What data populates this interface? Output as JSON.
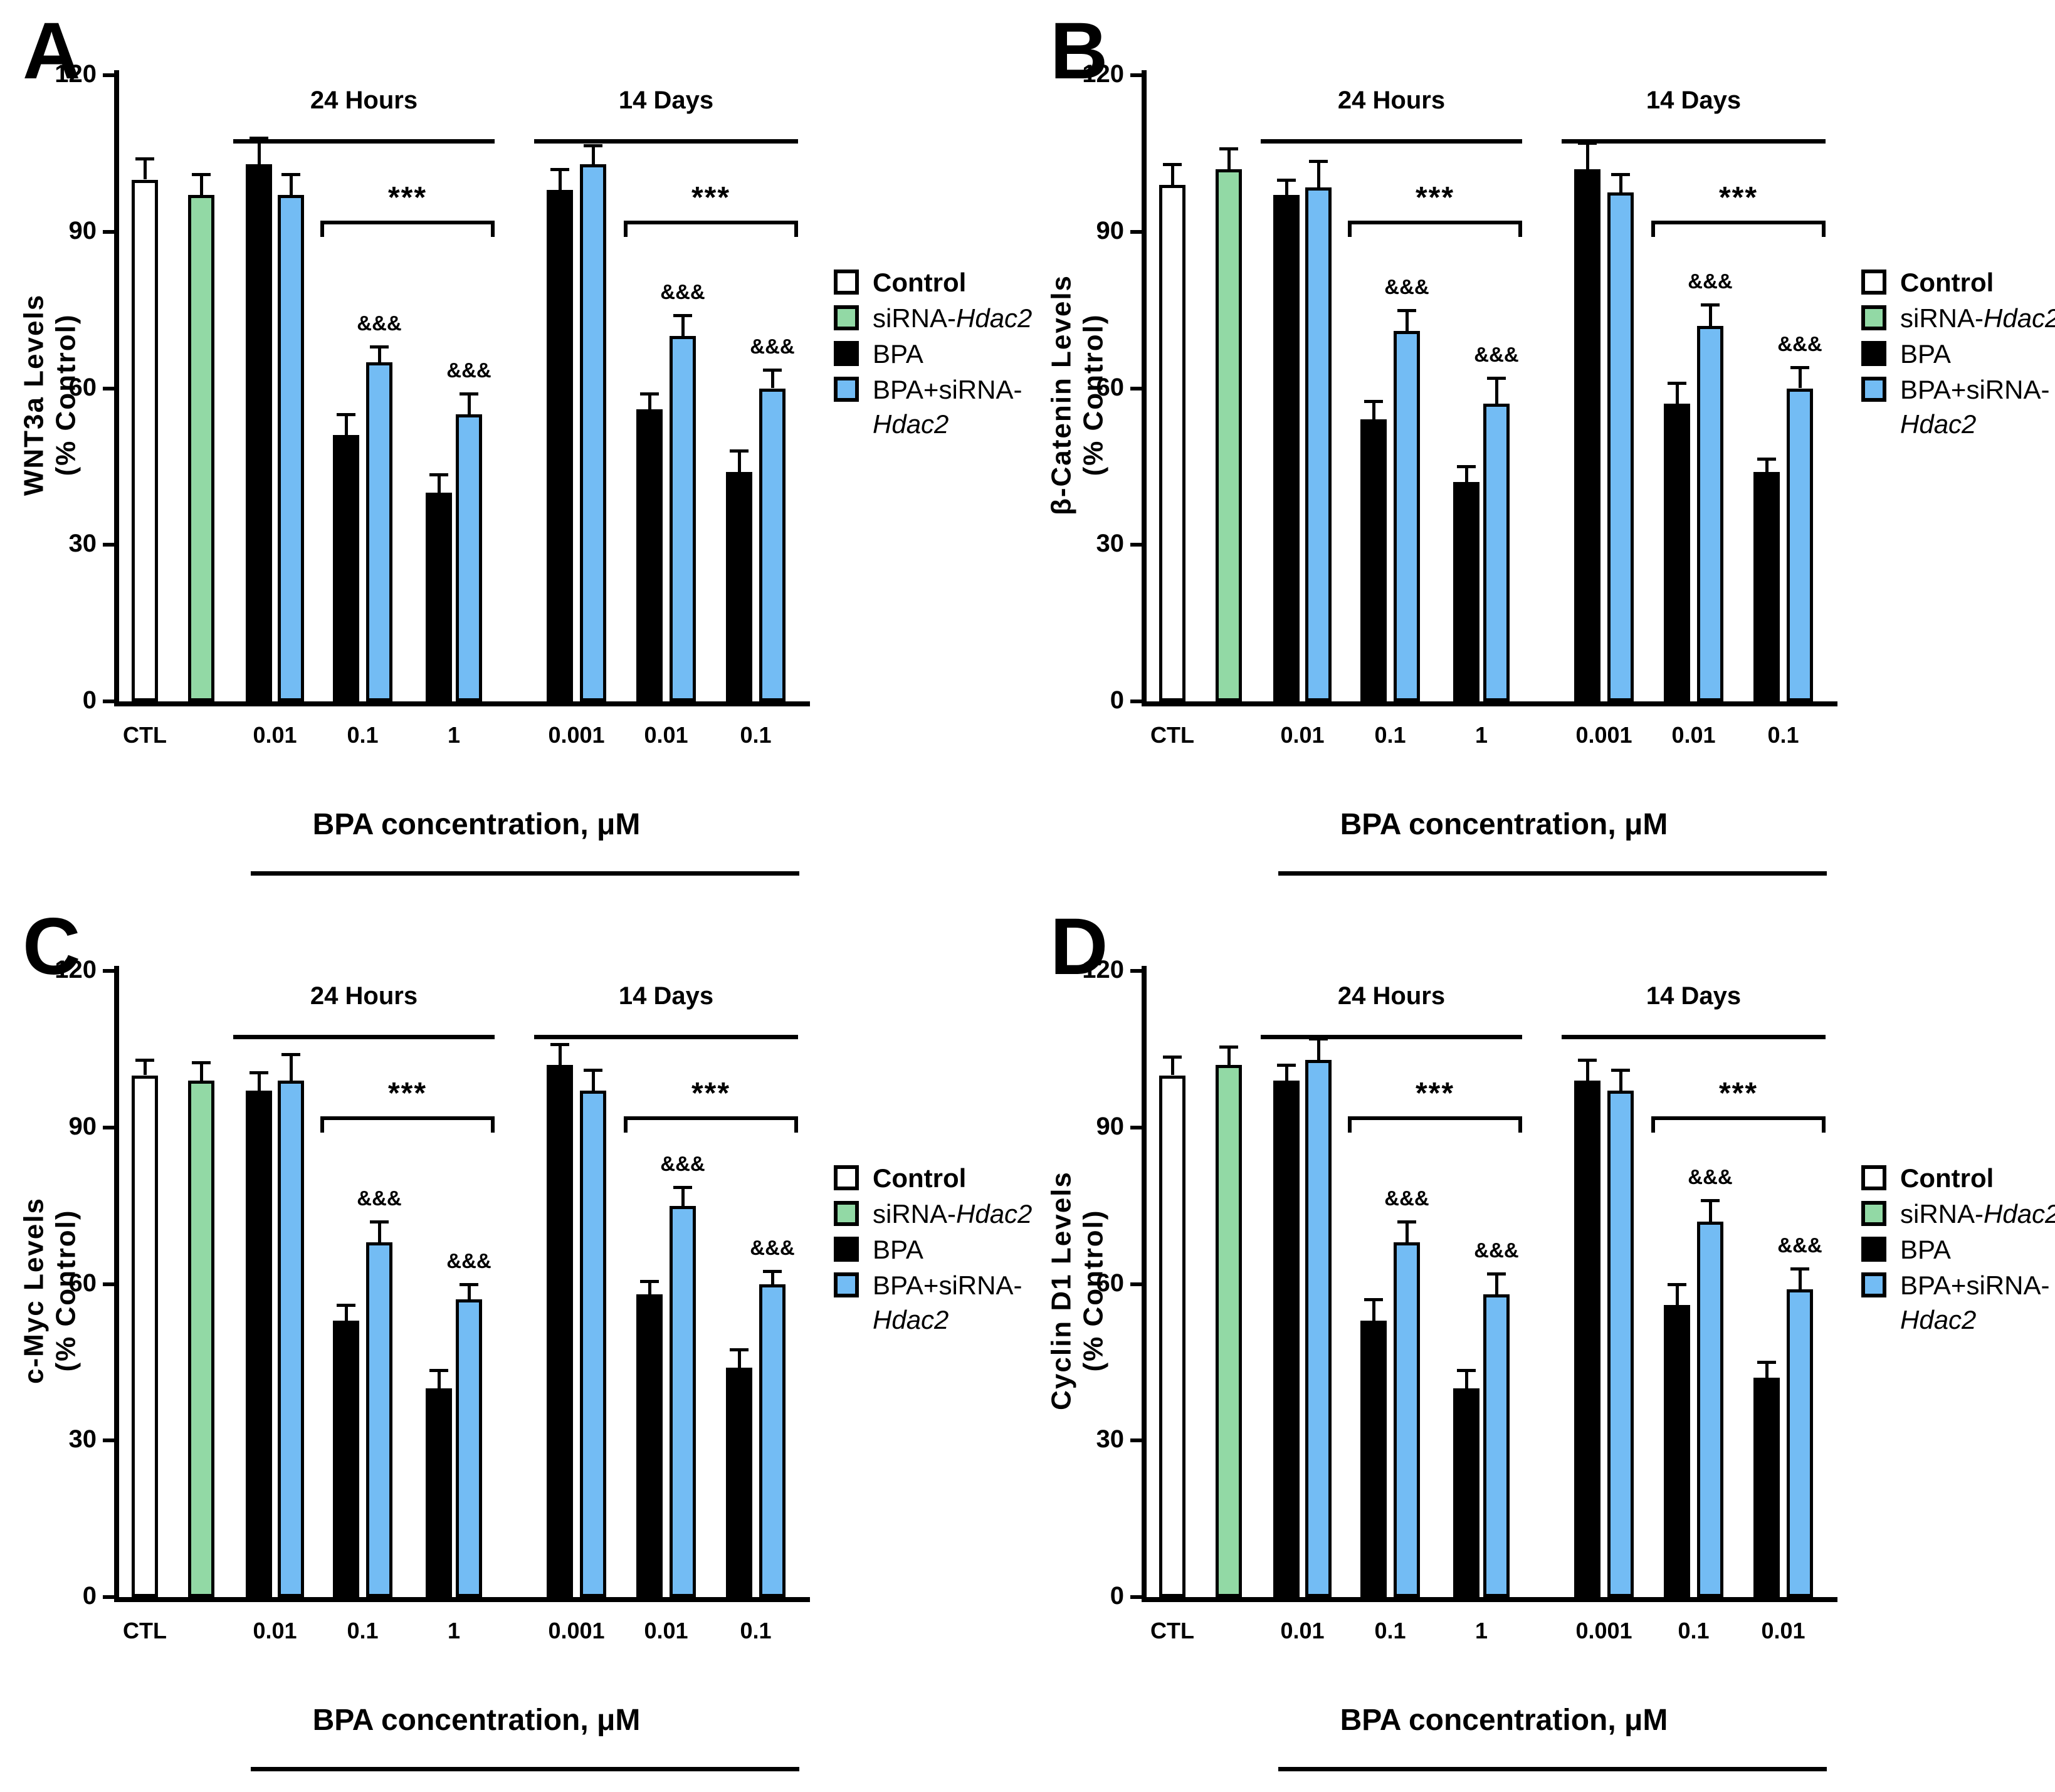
{
  "figure": {
    "background": "#FFFFFF",
    "accent_colors": {
      "control_fill": "#FFFFFF",
      "sirna_fill": "#92D9A5",
      "bpa_fill": "#000000",
      "bpa_sirna_fill": "#73BCF4",
      "outline": "#000000"
    },
    "xaxis_title": "BPA concentration, μM",
    "legend": {
      "items": [
        {
          "series": "Control",
          "swatch_key": "control_fill",
          "lines": [
            [
              {
                "text": "Control",
                "bold": true
              }
            ]
          ]
        },
        {
          "series": "siRNA-Hdac2",
          "swatch_key": "sirna_fill",
          "lines": [
            [
              {
                "text": "siRNA-"
              },
              {
                "text": "Hdac2",
                "italic": true
              }
            ]
          ]
        },
        {
          "series": "BPA",
          "swatch_key": "bpa_fill",
          "lines": [
            [
              {
                "text": "BPA"
              }
            ]
          ]
        },
        {
          "series": "BPA+siRNA-Hdac2",
          "swatch_key": "bpa_sirna_fill",
          "lines": [
            [
              {
                "text": "BPA+siRNA-"
              }
            ],
            [
              {
                "text": "Hdac2",
                "italic": true
              }
            ]
          ]
        }
      ]
    }
  },
  "chart_data": [
    {
      "panel": "A",
      "type": "bar",
      "ylabel_lines": [
        "WNT3a  Levels",
        "(% Control)"
      ],
      "ylim": [
        0,
        120
      ],
      "yticks": [
        0,
        30,
        60,
        90,
        120
      ],
      "sections": [
        {
          "label": "24 Hours",
          "from_group": 2,
          "to_group": 4
        },
        {
          "label": "14 Days",
          "from_group": 5,
          "to_group": 7
        }
      ],
      "sig_brackets": [
        {
          "label": "***",
          "from_group": 3,
          "to_group": 4
        },
        {
          "label": "***",
          "from_group": 6,
          "to_group": 7
        }
      ],
      "groups": [
        {
          "label": "CTL",
          "bars": [
            {
              "series": "Control",
              "value": 100,
              "err": 4
            }
          ]
        },
        {
          "label": "",
          "bars": [
            {
              "series": "siRNA-Hdac2",
              "value": 97,
              "err": 4
            }
          ]
        },
        {
          "label": "0.01",
          "bars": [
            {
              "series": "BPA",
              "value": 103,
              "err": 5
            },
            {
              "series": "BPA+siRNA-Hdac2",
              "value": 97,
              "err": 4
            }
          ]
        },
        {
          "label": "0.1",
          "bars": [
            {
              "series": "BPA",
              "value": 51,
              "err": 4
            },
            {
              "series": "BPA+siRNA-Hdac2",
              "value": 65,
              "err": 3,
              "note": "&&&"
            }
          ]
        },
        {
          "label": "1",
          "bars": [
            {
              "series": "BPA",
              "value": 40,
              "err": 3.5
            },
            {
              "series": "BPA+siRNA-Hdac2",
              "value": 55,
              "err": 4,
              "note": "&&&"
            }
          ]
        },
        {
          "label": "0.001",
          "bars": [
            {
              "series": "BPA",
              "value": 98,
              "err": 4
            },
            {
              "series": "BPA+siRNA-Hdac2",
              "value": 103,
              "err": 3.5
            }
          ]
        },
        {
          "label": "0.01",
          "bars": [
            {
              "series": "BPA",
              "value": 56,
              "err": 3
            },
            {
              "series": "BPA+siRNA-Hdac2",
              "value": 70,
              "err": 4,
              "note": "&&&"
            }
          ]
        },
        {
          "label": "0.1",
          "bars": [
            {
              "series": "BPA",
              "value": 44,
              "err": 4
            },
            {
              "series": "BPA+siRNA-Hdac2",
              "value": 60,
              "err": 3.5,
              "note": "&&&"
            }
          ]
        }
      ]
    },
    {
      "panel": "B",
      "type": "bar",
      "ylabel_lines": [
        "β-Catenin  Levels",
        "(% Control)"
      ],
      "ylim": [
        0,
        120
      ],
      "yticks": [
        0,
        30,
        60,
        90,
        120
      ],
      "sections": [
        {
          "label": "24 Hours",
          "from_group": 2,
          "to_group": 4
        },
        {
          "label": "14 Days",
          "from_group": 5,
          "to_group": 7
        }
      ],
      "sig_brackets": [
        {
          "label": "***",
          "from_group": 3,
          "to_group": 4
        },
        {
          "label": "***",
          "from_group": 6,
          "to_group": 7
        }
      ],
      "groups": [
        {
          "label": "CTL",
          "bars": [
            {
              "series": "Control",
              "value": 99,
              "err": 4
            }
          ]
        },
        {
          "label": "",
          "bars": [
            {
              "series": "siRNA-Hdac2",
              "value": 102,
              "err": 4
            }
          ]
        },
        {
          "label": "0.01",
          "bars": [
            {
              "series": "BPA",
              "value": 97,
              "err": 3
            },
            {
              "series": "BPA+siRNA-Hdac2",
              "value": 98.5,
              "err": 5
            }
          ]
        },
        {
          "label": "0.1",
          "bars": [
            {
              "series": "BPA",
              "value": 54,
              "err": 3.5
            },
            {
              "series": "BPA+siRNA-Hdac2",
              "value": 71,
              "err": 4,
              "note": "&&&"
            }
          ]
        },
        {
          "label": "1",
          "bars": [
            {
              "series": "BPA",
              "value": 42,
              "err": 3
            },
            {
              "series": "BPA+siRNA-Hdac2",
              "value": 57,
              "err": 5,
              "note": "&&&"
            }
          ]
        },
        {
          "label": "0.001",
          "bars": [
            {
              "series": "BPA",
              "value": 102,
              "err": 5
            },
            {
              "series": "BPA+siRNA-Hdac2",
              "value": 97.5,
              "err": 3.5
            }
          ]
        },
        {
          "label": "0.01",
          "bars": [
            {
              "series": "BPA",
              "value": 57,
              "err": 4
            },
            {
              "series": "BPA+siRNA-Hdac2",
              "value": 72,
              "err": 4,
              "note": "&&&"
            }
          ]
        },
        {
          "label": "0.1",
          "bars": [
            {
              "series": "BPA",
              "value": 44,
              "err": 2.5
            },
            {
              "series": "BPA+siRNA-Hdac2",
              "value": 60,
              "err": 4,
              "note": "&&&"
            }
          ]
        }
      ]
    },
    {
      "panel": "C",
      "type": "bar",
      "ylabel_lines": [
        "c-Myc  Levels",
        "(% Control)"
      ],
      "ylim": [
        0,
        120
      ],
      "yticks": [
        0,
        30,
        60,
        90,
        120
      ],
      "sections": [
        {
          "label": "24 Hours",
          "from_group": 2,
          "to_group": 4
        },
        {
          "label": "14 Days",
          "from_group": 5,
          "to_group": 7
        }
      ],
      "sig_brackets": [
        {
          "label": "***",
          "from_group": 3,
          "to_group": 4
        },
        {
          "label": "***",
          "from_group": 6,
          "to_group": 7
        }
      ],
      "groups": [
        {
          "label": "CTL",
          "bars": [
            {
              "series": "Control",
              "value": 100,
              "err": 3
            }
          ]
        },
        {
          "label": "",
          "bars": [
            {
              "series": "siRNA-Hdac2",
              "value": 99,
              "err": 3.5
            }
          ]
        },
        {
          "label": "0.01",
          "bars": [
            {
              "series": "BPA",
              "value": 97,
              "err": 3.5
            },
            {
              "series": "BPA+siRNA-Hdac2",
              "value": 99,
              "err": 5
            }
          ]
        },
        {
          "label": "0.1",
          "bars": [
            {
              "series": "BPA",
              "value": 53,
              "err": 3
            },
            {
              "series": "BPA+siRNA-Hdac2",
              "value": 68,
              "err": 4,
              "note": "&&&"
            }
          ]
        },
        {
          "label": "1",
          "bars": [
            {
              "series": "BPA",
              "value": 40,
              "err": 3.5
            },
            {
              "series": "BPA+siRNA-Hdac2",
              "value": 57,
              "err": 3,
              "note": "&&&"
            }
          ]
        },
        {
          "label": "0.001",
          "bars": [
            {
              "series": "BPA",
              "value": 102,
              "err": 4
            },
            {
              "series": "BPA+siRNA-Hdac2",
              "value": 97,
              "err": 4
            }
          ]
        },
        {
          "label": "0.01",
          "bars": [
            {
              "series": "BPA",
              "value": 58,
              "err": 2.5
            },
            {
              "series": "BPA+siRNA-Hdac2",
              "value": 75,
              "err": 3.5,
              "note": "&&&"
            }
          ]
        },
        {
          "label": "0.1",
          "bars": [
            {
              "series": "BPA",
              "value": 44,
              "err": 3.5
            },
            {
              "series": "BPA+siRNA-Hdac2",
              "value": 60,
              "err": 2.5,
              "note": "&&&"
            }
          ]
        }
      ]
    },
    {
      "panel": "D",
      "type": "bar",
      "ylabel_lines": [
        "Cyclin D1  Levels",
        "(% Control)"
      ],
      "ylim": [
        0,
        120
      ],
      "yticks": [
        0,
        30,
        60,
        90,
        120
      ],
      "sections": [
        {
          "label": "24 Hours",
          "from_group": 2,
          "to_group": 4
        },
        {
          "label": "14 Days",
          "from_group": 5,
          "to_group": 7
        }
      ],
      "sig_brackets": [
        {
          "label": "***",
          "from_group": 3,
          "to_group": 4
        },
        {
          "label": "***",
          "from_group": 6,
          "to_group": 7
        }
      ],
      "groups": [
        {
          "label": "CTL",
          "bars": [
            {
              "series": "Control",
              "value": 100,
              "err": 3.5
            }
          ]
        },
        {
          "label": "",
          "bars": [
            {
              "series": "siRNA-Hdac2",
              "value": 102,
              "err": 3.5
            }
          ]
        },
        {
          "label": "0.01",
          "bars": [
            {
              "series": "BPA",
              "value": 99,
              "err": 3
            },
            {
              "series": "BPA+siRNA-Hdac2",
              "value": 103,
              "err": 4
            }
          ]
        },
        {
          "label": "0.1",
          "bars": [
            {
              "series": "BPA",
              "value": 53,
              "err": 4
            },
            {
              "series": "BPA+siRNA-Hdac2",
              "value": 68,
              "err": 4,
              "note": "&&&"
            }
          ]
        },
        {
          "label": "1",
          "bars": [
            {
              "series": "BPA",
              "value": 40,
              "err": 3.5
            },
            {
              "series": "BPA+siRNA-Hdac2",
              "value": 58,
              "err": 4,
              "note": "&&&"
            }
          ]
        },
        {
          "label": "0.001",
          "bars": [
            {
              "series": "BPA",
              "value": 99,
              "err": 4
            },
            {
              "series": "BPA+siRNA-Hdac2",
              "value": 97,
              "err": 4
            }
          ]
        },
        {
          "label": "0.1",
          "bars": [
            {
              "series": "BPA",
              "value": 56,
              "err": 4
            },
            {
              "series": "BPA+siRNA-Hdac2",
              "value": 72,
              "err": 4,
              "note": "&&&"
            }
          ]
        },
        {
          "label": "0.01",
          "bars": [
            {
              "series": "BPA",
              "value": 42,
              "err": 3
            },
            {
              "series": "BPA+siRNA-Hdac2",
              "value": 59,
              "err": 4,
              "note": "&&&"
            }
          ]
        }
      ]
    }
  ]
}
